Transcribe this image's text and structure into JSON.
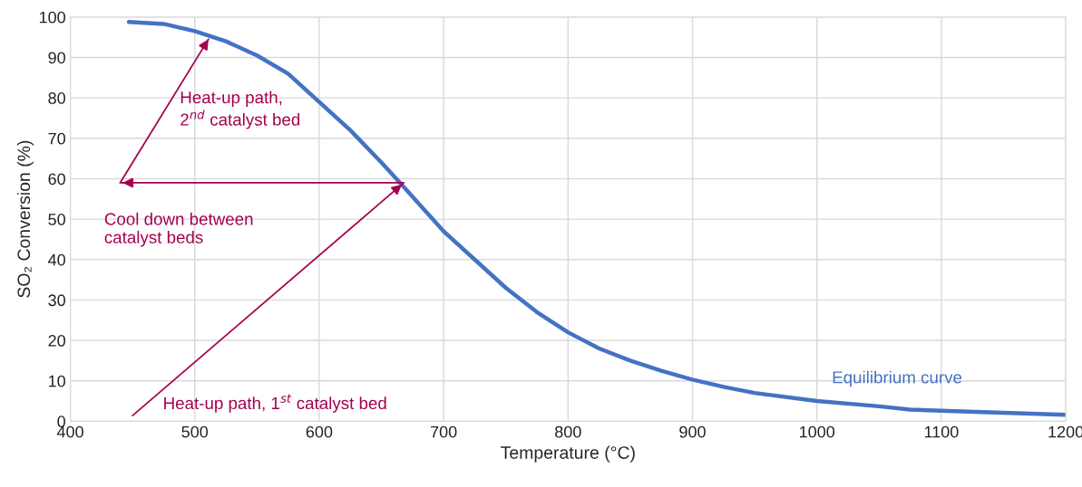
{
  "chart_data": {
    "type": "line",
    "xlabel": "Temperature (°C)",
    "ylabel": "SO₂ Conversion (%)",
    "xlim": [
      400,
      1200
    ],
    "xticks": [
      400,
      500,
      600,
      700,
      800,
      900,
      1000,
      1100,
      1200
    ],
    "ylim": [
      0,
      100
    ],
    "yticks": [
      0,
      10,
      20,
      30,
      40,
      50,
      60,
      70,
      80,
      90,
      100
    ],
    "grid": true,
    "series": [
      {
        "name": "Equilibrium curve",
        "color": "#4472c4",
        "x": [
          447,
          475,
          500,
          525,
          550,
          575,
          600,
          625,
          650,
          665,
          700,
          725,
          750,
          775,
          800,
          825,
          850,
          875,
          900,
          925,
          950,
          1000,
          1050,
          1075,
          1100,
          1150,
          1200
        ],
        "values": [
          98.8,
          98.3,
          96.5,
          94,
          90.5,
          86,
          79,
          72,
          64,
          59,
          47,
          40,
          33,
          27,
          22,
          18,
          15,
          12.5,
          10.3,
          8.5,
          7,
          5,
          3.7,
          2.9,
          2.6,
          2.1,
          1.6
        ]
      },
      {
        "color": "#a50050",
        "x": [
          450,
          668,
          440,
          511
        ],
        "values": [
          1.4,
          59,
          59,
          94.5
        ]
      }
    ],
    "annotations": [
      "Heat-up path,\n2$^{nd}$ catalyst bed",
      "Cool down between\ncatalyst beds",
      "Heat-up path, 1$^{st}$ catalyst bed"
    ]
  }
}
